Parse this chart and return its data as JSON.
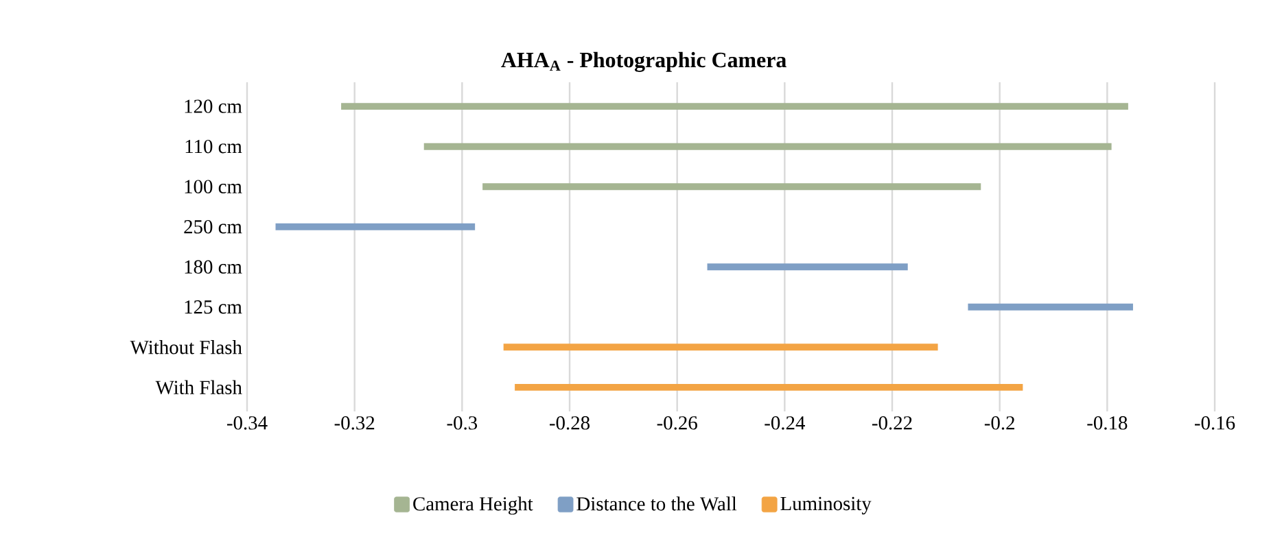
{
  "chart_data": {
    "type": "bar",
    "orientation": "horizontal",
    "title": "AHA$_{A}$ - Photographic Camera",
    "categories": [
      "120 cm",
      "110 cm",
      "100 cm",
      "250 cm",
      "180 cm",
      "125 cm",
      "Without Flash",
      "With Flash"
    ],
    "series": [
      {
        "name": "Camera Height",
        "color": "#a5b592",
        "base": [
          -0.3225,
          -0.3071,
          -0.2962,
          null,
          null,
          null,
          null,
          null
        ],
        "values": [
          0.1464,
          0.1279,
          0.0927,
          null,
          null,
          null,
          null,
          null
        ]
      },
      {
        "name": "Distance to the Wall",
        "color": "#7f9fc5",
        "base": [
          null,
          null,
          null,
          -0.3347,
          -0.2544,
          -0.2059,
          null,
          null
        ],
        "values": [
          null,
          null,
          null,
          0.0371,
          0.0373,
          0.0307,
          null,
          null
        ]
      },
      {
        "name": "Luminosity",
        "color": "#f3a444",
        "base": [
          null,
          null,
          null,
          null,
          null,
          null,
          -0.2923,
          -0.2902
        ],
        "values": [
          null,
          null,
          null,
          null,
          null,
          null,
          0.0808,
          0.0945
        ]
      }
    ],
    "xlim": [
      -0.34,
      -0.16
    ],
    "xticks": [
      -0.34,
      -0.32,
      -0.3,
      -0.28,
      -0.26,
      -0.24,
      -0.22,
      -0.2,
      -0.18,
      -0.16
    ],
    "grid": "x",
    "legend": "bottom"
  }
}
